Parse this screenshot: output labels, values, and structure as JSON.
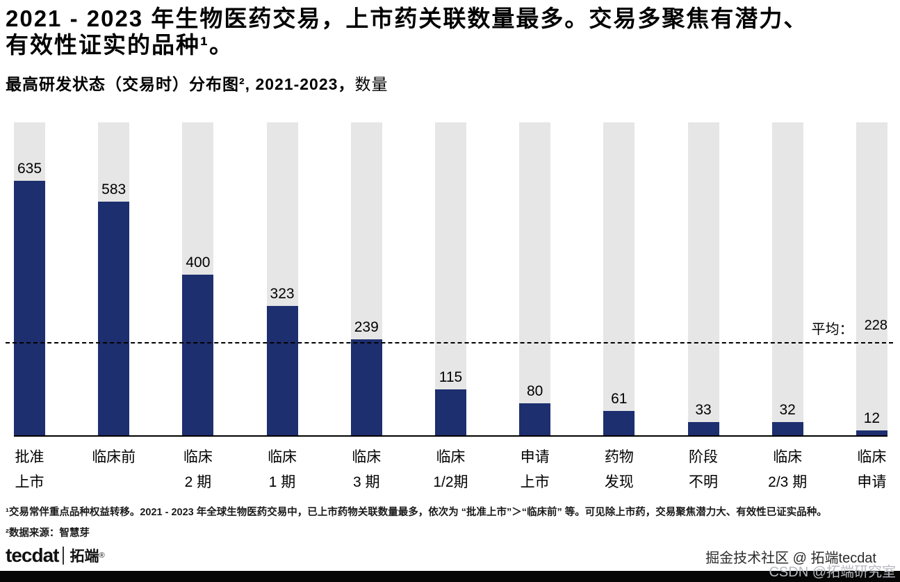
{
  "header": {
    "title_line1": "2021 - 2023 年生物医药交易，上市药关联数量最多。交易多聚焦有潜力、",
    "title_line2": "有效性证实的品种¹。",
    "subtitle_main": "最高研发状态（交易时）分布图², 2021-2023，",
    "subtitle_suffix": "数量"
  },
  "chart_data": {
    "type": "bar",
    "title": "最高研发状态（交易时）分布图, 2021-2023, 数量",
    "xlabel": "",
    "ylabel": "数量",
    "categories": [
      [
        "批准",
        "上市"
      ],
      [
        "临床前"
      ],
      [
        "临床",
        "2 期"
      ],
      [
        "临床",
        "1 期"
      ],
      [
        "临床",
        "3 期"
      ],
      [
        "临床",
        "1/2期"
      ],
      [
        "申请",
        "上市"
      ],
      [
        "药物",
        "发现"
      ],
      [
        "阶段",
        "不明"
      ],
      [
        "临床",
        "2/3 期"
      ],
      [
        "临床",
        "申请"
      ]
    ],
    "values": [
      635,
      583,
      400,
      323,
      239,
      115,
      80,
      61,
      33,
      32,
      12
    ],
    "average": 228,
    "average_prefix": "平均：",
    "ylim": [
      0,
      780
    ],
    "grid": false,
    "legend": false,
    "bar_color": "#1d2f6f",
    "track_color": "#e6e6e6"
  },
  "footnotes": {
    "note1": "¹交易常伴重点品种权益转移。2021 - 2023 年全球生物医药交易中，已上市药物关联数量最多，依次为 “批准上市”＞“临床前” 等。可见除上市药，交易聚焦潜力大、有效性已证实品种。",
    "note2": "²数据来源：智慧芽"
  },
  "footer": {
    "logo_brand": "tecdat",
    "logo_cn": "拓端",
    "logo_reg": "®",
    "community": "掘金技术社区 @ 拓端tecdat",
    "watermark": "CSDN @拓端研究室"
  }
}
